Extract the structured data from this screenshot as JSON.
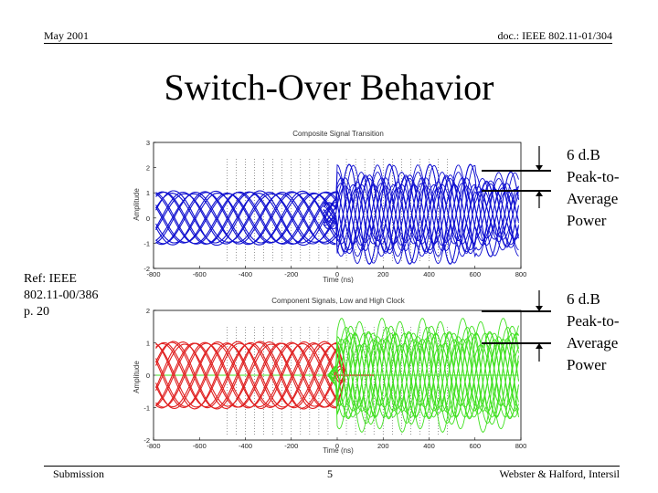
{
  "header": {
    "date": "May 2001",
    "doc": "doc.: IEEE 802.11-01/304"
  },
  "title": "Switch-Over Behavior",
  "annotation_top": [
    "6 d.B",
    "Peak-to-",
    "Average",
    "Power"
  ],
  "annotation_bottom": [
    "6 d.B",
    "Peak-to-",
    "Average",
    "Power"
  ],
  "reference": [
    "Ref: IEEE",
    "802.11-00/386",
    "p. 20"
  ],
  "footer": {
    "left": "Submission",
    "page": "5",
    "right": "Webster & Halford, Intersil"
  },
  "chart_data": [
    {
      "type": "line",
      "title": "Composite Signal Transition",
      "xlabel": "Time (ns)",
      "ylabel": "Amplitude",
      "xlim": [
        -800,
        800
      ],
      "ylim": [
        -2,
        3
      ],
      "x_ticks": [
        -800,
        -600,
        -400,
        -200,
        0,
        200,
        400,
        600,
        800
      ],
      "y_ticks": [
        -2,
        -1,
        0,
        1,
        2,
        3
      ],
      "series_colors": [
        "#1010d0"
      ],
      "description_values": {
        "before_transition_amplitude": [
          -1,
          1
        ],
        "after_transition_peak": 2.0,
        "after_transition_trough": -1.6
      }
    },
    {
      "type": "line",
      "title": "Component Signals, Low and High Clock",
      "xlabel": "Time (ns)",
      "ylabel": "Amplitude",
      "xlim": [
        -800,
        800
      ],
      "ylim": [
        -2,
        2
      ],
      "x_ticks": [
        -800,
        -600,
        -400,
        -200,
        0,
        200,
        400,
        600,
        800
      ],
      "y_ticks": [
        -2,
        -1,
        0,
        1,
        2
      ],
      "series_colors": [
        "#e02020",
        "#40e020"
      ],
      "description_values": {
        "low_clock_amplitude": [
          -1,
          1
        ],
        "high_clock_peak": 1.9,
        "high_clock_trough": -1.7
      }
    }
  ]
}
